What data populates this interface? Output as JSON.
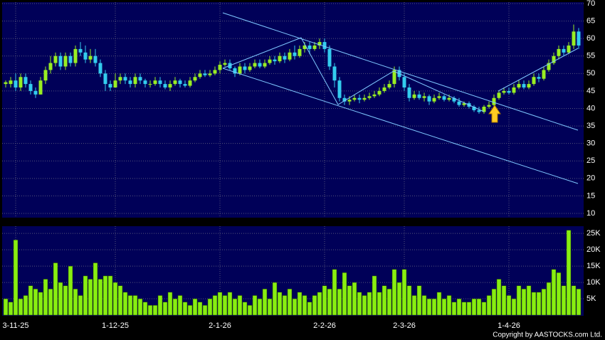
{
  "chart_data": {
    "type": "candlestick",
    "categories": [
      null,
      null,
      "3-11-25",
      null,
      null,
      null,
      null,
      null,
      null,
      null,
      null,
      null,
      null,
      null,
      null,
      null,
      null,
      null,
      null,
      null,
      null,
      null,
      "1-12-25",
      null,
      null,
      null,
      null,
      null,
      null,
      null,
      null,
      null,
      null,
      null,
      null,
      null,
      null,
      null,
      null,
      null,
      null,
      null,
      null,
      "2-1-26",
      null,
      null,
      null,
      null,
      null,
      null,
      null,
      null,
      null,
      null,
      null,
      null,
      null,
      null,
      null,
      null,
      null,
      null,
      null,
      null,
      "2-2-26",
      null,
      null,
      null,
      null,
      null,
      null,
      null,
      null,
      null,
      null,
      null,
      null,
      null,
      null,
      null,
      "2-3-26",
      null,
      null,
      null,
      null,
      null,
      null,
      null,
      null,
      null,
      null,
      null,
      null,
      null,
      null,
      null,
      null,
      null,
      null,
      null,
      null,
      "1-4-26",
      null,
      null,
      null,
      null,
      null,
      null,
      null,
      null,
      null,
      null,
      null,
      null,
      null,
      null
    ],
    "open": [
      47,
      47,
      48,
      46,
      49,
      47,
      45,
      44,
      48,
      51,
      53,
      55,
      52,
      55,
      53,
      57,
      56,
      54,
      55,
      53,
      50,
      47,
      46,
      48,
      49,
      48,
      47,
      49,
      48,
      47,
      47,
      48,
      47,
      46,
      47,
      48,
      47,
      46.5,
      48,
      49,
      50,
      49.5,
      50,
      51,
      52.5,
      53,
      51.5,
      50,
      52,
      51,
      52,
      53,
      52,
      53,
      54,
      53.5,
      55,
      54,
      56,
      55,
      57,
      58,
      57,
      58,
      59,
      57,
      52,
      48,
      43,
      42,
      42.5,
      43,
      42.5,
      43,
      43.5,
      44,
      45,
      46,
      47,
      51,
      49,
      46,
      43,
      44,
      43,
      43.5,
      42,
      43,
      43.5,
      42.5,
      43,
      42,
      41,
      41.5,
      40.5,
      39.5,
      39,
      40.5,
      41,
      43,
      44.5,
      45,
      44.5,
      46,
      47,
      46,
      47,
      49,
      48.5,
      51,
      53,
      55,
      57,
      56,
      58,
      62
    ],
    "high": [
      48,
      49,
      50,
      50,
      50,
      48,
      46,
      49,
      52,
      55,
      56,
      56,
      56,
      56,
      58,
      59,
      58,
      57,
      57,
      54,
      51,
      48,
      50,
      50,
      50,
      49,
      50,
      50,
      48.5,
      48,
      49,
      49,
      48,
      48,
      49,
      48.5,
      48,
      49,
      50,
      51,
      51,
      51,
      52,
      53.5,
      54,
      54,
      52,
      53,
      53,
      53,
      54,
      54,
      54,
      55,
      55,
      56,
      56,
      57,
      58,
      58,
      59,
      59,
      59,
      60,
      60,
      58,
      53,
      49,
      44,
      43.5,
      44,
      44,
      44,
      44.5,
      45,
      46,
      47,
      48,
      52,
      52,
      50,
      47,
      45,
      45,
      44.5,
      44,
      44,
      44.5,
      44,
      44,
      43.5,
      43,
      42,
      42,
      41,
      40.5,
      41,
      42,
      44,
      45,
      46,
      46,
      47,
      48,
      48,
      48,
      50,
      50,
      52,
      54,
      56,
      58,
      58,
      59,
      64,
      63
    ],
    "low": [
      46,
      46,
      45,
      45,
      46,
      44,
      43,
      44,
      47,
      50,
      52,
      51,
      51,
      52,
      52,
      55,
      53,
      53,
      52,
      49,
      45,
      45,
      46,
      47,
      47,
      46,
      46,
      47,
      46,
      46,
      46.5,
      46,
      45.5,
      45,
      46.5,
      46,
      46,
      46,
      47.5,
      48.5,
      49,
      49,
      49.5,
      50,
      52,
      51,
      49,
      49.5,
      50,
      50.5,
      51.5,
      51.5,
      51.5,
      52.5,
      52.5,
      53,
      53,
      53.5,
      54,
      54.5,
      56,
      55.5,
      56.5,
      57,
      56,
      51,
      46,
      42,
      41,
      41,
      42,
      41.5,
      42,
      42.5,
      43,
      43.5,
      44.5,
      45.5,
      46,
      48,
      45,
      42,
      42.5,
      42.5,
      42,
      41,
      41.5,
      42.5,
      42,
      42,
      41.5,
      40.5,
      40.5,
      40,
      39,
      38.5,
      38.5,
      40,
      40.5,
      42.5,
      44,
      44,
      44,
      45.5,
      45.5,
      45.5,
      46.5,
      47.5,
      48,
      50.5,
      52.5,
      54,
      55,
      55.5,
      57,
      57
    ],
    "close": [
      47.5,
      48,
      46,
      49,
      47,
      45,
      44,
      48,
      51,
      53,
      55,
      52,
      55,
      53,
      57,
      56,
      54,
      55,
      53,
      50,
      47,
      46,
      48,
      49,
      48,
      47,
      49,
      48,
      47,
      47,
      48,
      47,
      46,
      47,
      48,
      47,
      46.5,
      48,
      49,
      50,
      49.5,
      50,
      51,
      52.5,
      53,
      51.5,
      50,
      52,
      51,
      52,
      53,
      52,
      53,
      54,
      53.5,
      55,
      54,
      56,
      55,
      57,
      58,
      57,
      58,
      59,
      57,
      52,
      48,
      43,
      42,
      42.5,
      43,
      42.5,
      43,
      43.5,
      44,
      45,
      46,
      47,
      51,
      49,
      46,
      43,
      44,
      43,
      43.5,
      42,
      43,
      43.5,
      42.5,
      43,
      42,
      41,
      41.5,
      40.5,
      39.5,
      39,
      40.5,
      41,
      43,
      44.5,
      45,
      44.5,
      46,
      47,
      46,
      47,
      49,
      48.5,
      51,
      53,
      55,
      57,
      56,
      58,
      62,
      58
    ],
    "volume": [
      5000,
      4000,
      23000,
      5000,
      6000,
      9000,
      8000,
      7000,
      11000,
      8000,
      16000,
      10000,
      9000,
      15000,
      8000,
      6000,
      12000,
      11000,
      16000,
      11000,
      12000,
      12000,
      10000,
      9000,
      7000,
      6000,
      6000,
      5000,
      4000,
      3000,
      3000,
      6000,
      4000,
      7000,
      5000,
      6000,
      4000,
      3000,
      5000,
      4000,
      3000,
      5000,
      6000,
      7000,
      6000,
      7000,
      5000,
      6000,
      4000,
      3000,
      6000,
      5000,
      8000,
      5000,
      10000,
      7000,
      6000,
      8000,
      5000,
      7000,
      6000,
      4000,
      6000,
      7000,
      9000,
      8000,
      14000,
      8000,
      13000,
      9000,
      10000,
      7000,
      6000,
      7000,
      12000,
      7000,
      9000,
      8000,
      14000,
      10000,
      14000,
      9000,
      6000,
      9000,
      6000,
      5000,
      5000,
      7000,
      5000,
      6000,
      4000,
      5000,
      4000,
      4000,
      5000,
      5000,
      4000,
      6000,
      8000,
      11000,
      9000,
      6000,
      5000,
      9000,
      8000,
      9000,
      7000,
      7000,
      8000,
      10000,
      14000,
      13000,
      9000,
      26000,
      9000,
      8000
    ],
    "up_color": "#99ee22",
    "down_color": "#33ccee",
    "volume_color": "#88ee11",
    "ylim": [
      10,
      70
    ],
    "yticks": [
      10,
      15,
      20,
      25,
      30,
      35,
      40,
      45,
      50,
      55,
      60,
      65,
      70
    ],
    "volume_ylim": [
      0,
      27000
    ],
    "volume_ticks": [
      {
        "value": 5000,
        "label": "5K"
      },
      {
        "value": 10000,
        "label": "10K"
      },
      {
        "value": 15000,
        "label": "15K"
      },
      {
        "value": 20000,
        "label": "20K"
      },
      {
        "value": 25000,
        "label": "25K"
      }
    ],
    "grid": true,
    "copyright": "Copyright by AASTOCKS.com Ltd."
  }
}
